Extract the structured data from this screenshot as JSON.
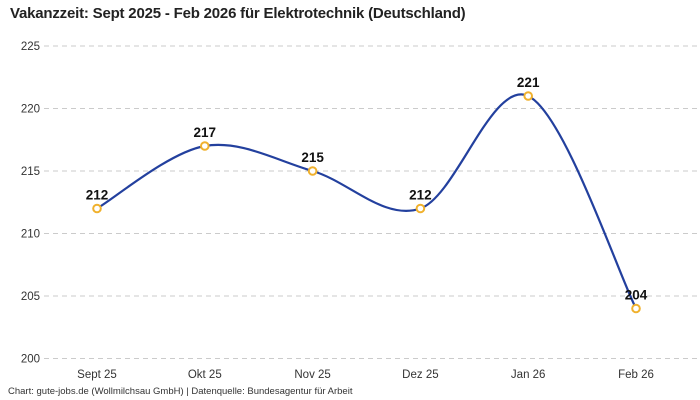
{
  "title": "Vakanzzeit: Sept 2025 - Feb 2026 für Elektrotechnik (Deutschland)",
  "footer": "Chart: gute-jobs.de (Wollmilchsau GmbH) | Datenquelle: Bundesagentur für Arbeit",
  "colors": {
    "background": "#FFFFFF",
    "line": "#23409E",
    "marker_stroke": "#F0B12D",
    "marker_fill": "#FFFFFF",
    "grid": "#CBCBCB",
    "title_text": "#222222",
    "axis_text": "#333333",
    "value_label": "#111111",
    "footer_text": "#333333"
  },
  "chart_data": {
    "type": "line",
    "title": "Vakanzzeit: Sept 2025 - Feb 2026 für Elektrotechnik (Deutschland)",
    "series_name": "Vakanzzeit",
    "categories": [
      "Sept 25",
      "Okt 25",
      "Nov 25",
      "Dez 25",
      "Jan 26",
      "Feb 26"
    ],
    "values": [
      212,
      217,
      215,
      212,
      221,
      204
    ],
    "point_labels": [
      "212",
      "217",
      "215",
      "212",
      "221",
      "204"
    ],
    "xlabel": "",
    "ylabel": "",
    "ylim": [
      200,
      225
    ],
    "yticks": [
      225,
      220,
      215,
      210,
      205,
      200
    ],
    "grid": "horizontal-dashed",
    "legend": false,
    "curve": "smooth",
    "marker": "open-circle"
  }
}
